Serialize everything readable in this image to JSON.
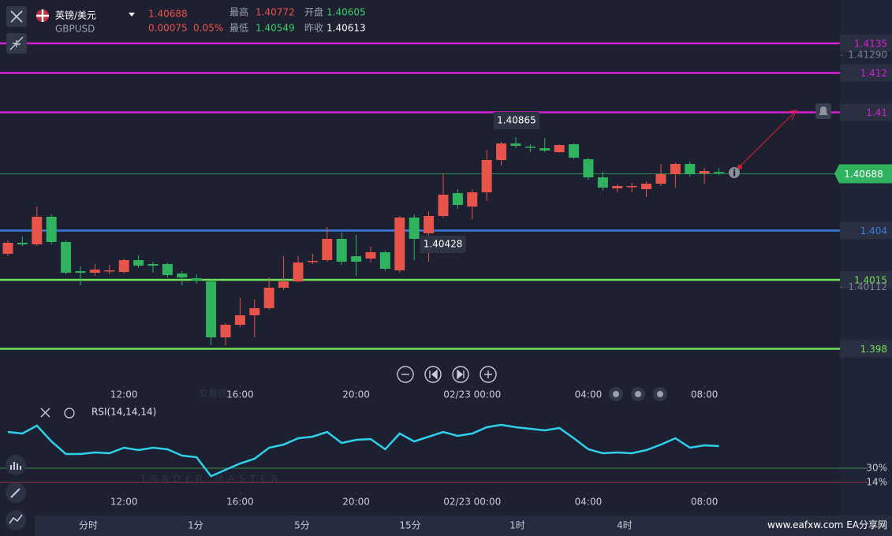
{
  "header": {
    "symbol": "英镑/美元",
    "code": "GBPUSD",
    "price": "1.40688",
    "change": "0.00075",
    "change_pct": "0.05%",
    "high_label": "最高",
    "high": "1.40772",
    "open_label": "开盘",
    "open": "1.40605",
    "low_label": "最低",
    "low": "1.40549",
    "prev_label": "昨收",
    "prev": "1.40613"
  },
  "chart_data": {
    "type": "candlestick",
    "up_color": "#e8534a",
    "down_color": "#2fb35e",
    "xlim": [
      -0.543,
      57.34
    ],
    "ylim": [
      1.3973,
      1.4157
    ],
    "yticks": [
      {
        "value": 1.4129,
        "label": "1.41290"
      },
      {
        "value": 1.40112,
        "label": "1.40112"
      }
    ],
    "xticks": [
      {
        "value": 8,
        "label": "12:00"
      },
      {
        "value": 16,
        "label": "16:00"
      },
      {
        "value": 24,
        "label": "20:00"
      },
      {
        "value": 32,
        "label": "02/23 00:00"
      },
      {
        "value": 40,
        "label": "04:00"
      },
      {
        "value": 48,
        "label": "08:00"
      }
    ],
    "hlines": [
      {
        "value": 1.4135,
        "color": "#d61fd6"
      },
      {
        "value": 1.412,
        "color": "#d61fd6"
      },
      {
        "value": 1.41,
        "color": "#d61fd6"
      },
      {
        "value": 1.404,
        "color": "#3d7be0"
      },
      {
        "value": 1.4015,
        "color": "#6ee05a"
      },
      {
        "value": 1.398,
        "color": "#6ee05a"
      }
    ],
    "last_price": 1.40688,
    "annotations": [
      {
        "x": 35,
        "value": 1.40865
      },
      {
        "x": 29,
        "value": 1.40428
      }
    ],
    "open": [
      1.40282,
      1.40338,
      1.4033,
      1.4047,
      1.40342,
      1.40194,
      1.40186,
      1.40194,
      1.4019,
      1.4025,
      1.4023,
      1.4023,
      1.40182,
      1.40158,
      1.40142,
      1.39858,
      1.39922,
      1.3997,
      1.40006,
      1.4011,
      1.40142,
      1.40242,
      1.4025,
      1.40358,
      1.4027,
      1.40258,
      1.4029,
      1.40198,
      1.40466,
      1.40386,
      1.40474,
      1.4059,
      1.40522,
      1.40594,
      1.40758,
      1.40842,
      1.40826,
      1.40818,
      1.40798,
      1.40838,
      1.40762,
      1.4067,
      1.40614,
      1.40622,
      1.4061,
      1.40638,
      1.40686,
      1.40738,
      1.4069,
      1.40698
    ],
    "high": [
      1.4035,
      1.4037,
      1.40522,
      1.40482,
      1.4035,
      1.40218,
      1.4023,
      1.40226,
      1.40258,
      1.40274,
      1.40242,
      1.40238,
      1.40194,
      1.40178,
      1.4015,
      1.3993,
      1.40058,
      1.4005,
      1.40162,
      1.4027,
      1.4027,
      1.40282,
      1.40418,
      1.4039,
      1.40378,
      1.40318,
      1.40298,
      1.40474,
      1.40482,
      1.40498,
      1.4069,
      1.4061,
      1.4061,
      1.4081,
      1.4085,
      1.40874,
      1.40838,
      1.4087,
      1.40838,
      1.40842,
      1.4077,
      1.40698,
      1.40634,
      1.40642,
      1.4065,
      1.40738,
      1.40746,
      1.4075,
      1.40718,
      1.40718
    ],
    "low": [
      1.4027,
      1.40322,
      1.40322,
      1.4033,
      1.40178,
      1.40122,
      1.4017,
      1.40178,
      1.40182,
      1.4021,
      1.40186,
      1.40162,
      1.40122,
      1.4013,
      1.39818,
      1.39818,
      1.3991,
      1.39858,
      1.39998,
      1.40098,
      1.40138,
      1.4023,
      1.40242,
      1.40226,
      1.4017,
      1.40238,
      1.40194,
      1.40186,
      1.4025,
      1.40242,
      1.40466,
      1.4051,
      1.40458,
      1.4055,
      1.4073,
      1.40818,
      1.40798,
      1.40798,
      1.40794,
      1.40762,
      1.40658,
      1.40602,
      1.40594,
      1.40594,
      1.4057,
      1.40626,
      1.40618,
      1.40674,
      1.40638,
      1.40682
    ],
    "close": [
      1.40338,
      1.4033,
      1.4047,
      1.40342,
      1.40186,
      1.40186,
      1.40202,
      1.40198,
      1.4025,
      1.40222,
      1.40222,
      1.40174,
      1.40162,
      1.40146,
      1.39858,
      1.39922,
      1.3997,
      1.40006,
      1.4011,
      1.40142,
      1.40238,
      1.40246,
      1.40358,
      1.40242,
      1.40242,
      1.4029,
      1.40206,
      1.40466,
      1.40358,
      1.40474,
      1.40582,
      1.4053,
      1.40594,
      1.40758,
      1.40842,
      1.4083,
      1.40822,
      1.40806,
      1.40834,
      1.4077,
      1.4067,
      1.40618,
      1.40626,
      1.40626,
      1.40638,
      1.40686,
      1.40738,
      1.40686,
      1.40702,
      1.40694
    ],
    "rsi": {
      "name": "RSI(14,14,14)",
      "color": "#2fd0ea",
      "ylim": [
        0,
        100
      ],
      "yticks": [
        {
          "value": 30,
          "label": "30%",
          "color": "#4caf50"
        },
        {
          "value": 14,
          "label": "14%",
          "color": "#c0394a"
        }
      ],
      "values": [
        70.9,
        69.1,
        78,
        60.2,
        46,
        46,
        47.8,
        46.9,
        53.1,
        50.4,
        53.1,
        51.3,
        44.2,
        42.4,
        20.9,
        28.2,
        35.3,
        40.7,
        53.1,
        56.7,
        63.8,
        65.6,
        70.9,
        58.4,
        62,
        62.9,
        51.3,
        69.1,
        60.2,
        65.6,
        70.9,
        66.4,
        69.1,
        76.2,
        78.9,
        76.2,
        74.4,
        72.7,
        75.3,
        63.8,
        51.3,
        46.9,
        47.8,
        46.9,
        50.4,
        56.7,
        63.8,
        53.1,
        55.8,
        54.9
      ]
    }
  },
  "tabs": [
    "分时",
    "1分",
    "5分",
    "15分",
    "1时",
    "4时"
  ],
  "watermark": {
    "brand": "交易侠",
    "brand_en": "TRADER MASTER",
    "site": "www.eafxw.com",
    "site_name": "EA分享网"
  }
}
